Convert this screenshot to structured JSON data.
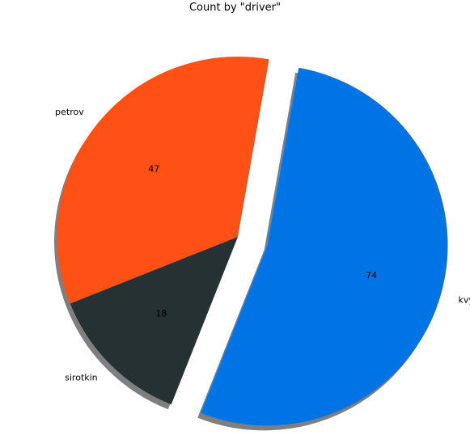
{
  "chart_data": {
    "type": "pie",
    "title": "Count by \"driver\"",
    "slices": [
      {
        "label": "petrov",
        "value": 47,
        "color": "#ff5015",
        "explode": false
      },
      {
        "label": "sirotkin",
        "value": 18,
        "color": "#263133",
        "explode": false
      },
      {
        "label": "kvyat",
        "value": 74,
        "color": "#0073e5",
        "explode": true
      }
    ],
    "shadow": true,
    "show_values": true
  }
}
